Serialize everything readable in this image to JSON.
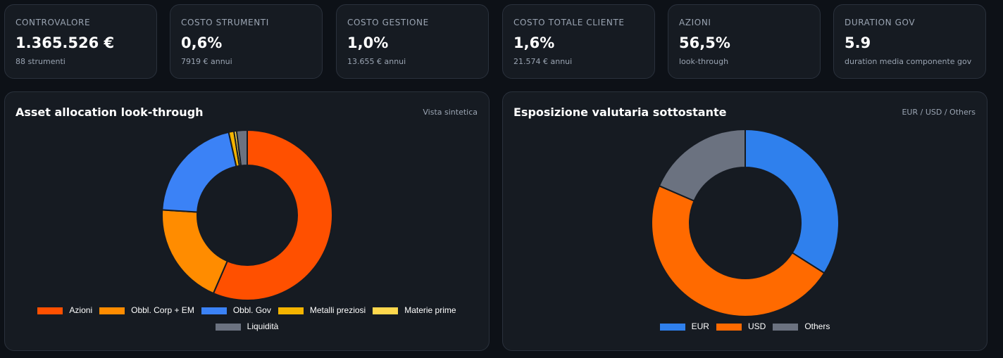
{
  "cards": [
    {
      "label": "CONTROVALORE",
      "value": "1.365.526 €",
      "note": "88 strumenti"
    },
    {
      "label": "COSTO STRUMENTI",
      "value": "0,6%",
      "note": "7919 € annui"
    },
    {
      "label": "COSTO GESTIONE",
      "value": "1,0%",
      "note": "13.655 € annui"
    },
    {
      "label": "COSTO TOTALE CLIENTE",
      "value": "1,6%",
      "note": "21.574 € annui"
    },
    {
      "label": "AZIONI",
      "value": "56,5%",
      "note": "look-through"
    },
    {
      "label": "DURATION GOV",
      "value": "5.9",
      "note": "duration media componente gov"
    }
  ],
  "chart_data": [
    {
      "type": "donut",
      "title": "Asset allocation look-through",
      "subtitle": "Vista sintetica",
      "categories": [
        "Azioni",
        "Obbl. Corp + EM",
        "Obbl. Gov",
        "Metalli preziosi",
        "Materie prime",
        "Liquidità"
      ],
      "values": [
        56.5,
        19.5,
        20.5,
        1,
        0.5,
        2
      ],
      "colors": [
        "#ff5000",
        "#ff8c00",
        "#3b82f6",
        "#f5b400",
        "#ffd84d",
        "#6b7280"
      ]
    },
    {
      "type": "donut",
      "title": "Esposizione valutaria sottostante",
      "subtitle": "EUR / USD / Others",
      "categories": [
        "EUR",
        "USD",
        "Others"
      ],
      "values": [
        34,
        47.5,
        18.5
      ],
      "colors": [
        "#2f80ed",
        "#ff6a00",
        "#6b7280"
      ]
    }
  ]
}
